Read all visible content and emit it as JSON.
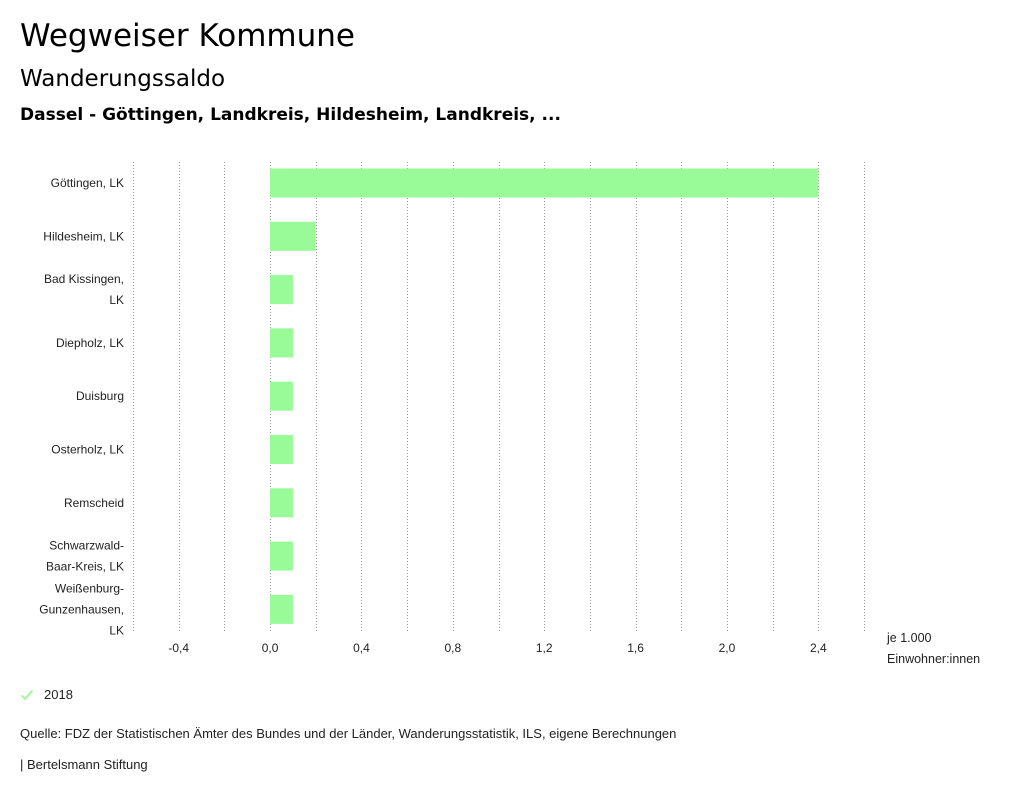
{
  "header": {
    "title": "Wegweiser Kommune",
    "subtitle": "Wanderungssaldo",
    "selection": "Dassel - Göttingen, Landkreis, Hildesheim, Landkreis, ..."
  },
  "colors": {
    "bar": "#98FB98",
    "grid": "#999999",
    "legend_check": "#98FB98"
  },
  "chart_data": {
    "type": "bar",
    "orientation": "horizontal",
    "categories": [
      "Göttingen, LK",
      "Hildesheim, LK",
      "Bad Kissingen, LK",
      "Diepholz, LK",
      "Duisburg",
      "Osterholz, LK",
      "Remscheid",
      "Schwarzwald-Baar-Kreis, LK",
      "Weißenburg-Gunzenhausen, LK"
    ],
    "category_label_lines": [
      [
        "Göttingen, LK"
      ],
      [
        "Hildesheim, LK"
      ],
      [
        "Bad Kissingen,",
        "LK"
      ],
      [
        "Diepholz, LK"
      ],
      [
        "Duisburg"
      ],
      [
        "Osterholz, LK"
      ],
      [
        "Remscheid"
      ],
      [
        "Schwarzwald-",
        "Baar-Kreis, LK"
      ],
      [
        "Weißenburg-",
        "Gunzenhausen,",
        "LK"
      ]
    ],
    "series": [
      {
        "name": "2018",
        "values": [
          2.4,
          0.2,
          0.1,
          0.1,
          0.1,
          0.1,
          0.1,
          0.1,
          0.1
        ]
      }
    ],
    "xlim": [
      -0.6,
      2.6
    ],
    "grid_step": 0.2,
    "tick_values": [
      -0.4,
      0.0,
      0.4,
      0.8,
      1.2,
      1.6,
      2.0,
      2.4
    ],
    "tick_labels": [
      "-0,4",
      "0,0",
      "0,4",
      "0,8",
      "1,2",
      "1,6",
      "2,0",
      "2,4"
    ],
    "unit_label_line1": "je 1.000",
    "unit_label_line2": "Einwohner:innen",
    "grid": true,
    "legend_position": "bottom-left"
  },
  "legend": {
    "label": "2018"
  },
  "footer": {
    "source": "Quelle: FDZ der Statistischen Ämter des Bundes und der Länder, Wanderungsstatistik, ILS, eigene Berechnungen",
    "credit": "| Bertelsmann Stiftung"
  }
}
